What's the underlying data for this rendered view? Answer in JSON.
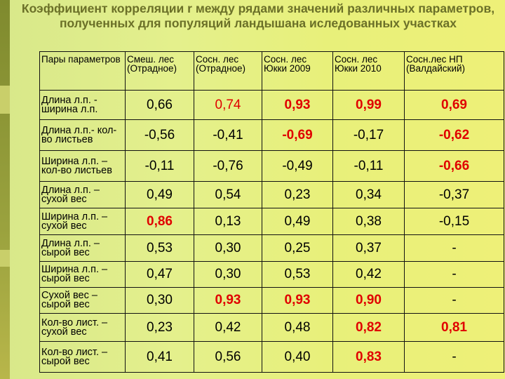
{
  "title": "Коэффициент корреляции r  между рядами значений различных параметров, полученных для  популяций ландышана иследованных участках",
  "columns": [
    "Пары параметров",
    "Смеш. лес (Отрадное)",
    "Сосн. лес (Отрадное)",
    "Сосн. лес Юкки 2009",
    "Сосн. лес Юкки 2010",
    "Сосн.лес НП (Валдайский)"
  ],
  "rows": [
    {
      "pair": "Длина л.п. - ширина л.п.",
      "values": [
        "0,66",
        "0,74",
        "0,93",
        "0,99",
        "0,69"
      ],
      "red": [
        false,
        "plain",
        true,
        true,
        true
      ]
    },
    {
      "pair": "Длина л.п.- кол-во листьев",
      "values": [
        "-0,56",
        "-0,41",
        "-0,69",
        "-0,17",
        "-0,62"
      ],
      "red": [
        false,
        false,
        true,
        false,
        true
      ]
    },
    {
      "pair": "Ширина л.п. – кол-во листьев",
      "values": [
        "-0,11",
        "-0,76",
        "-0,49",
        "-0,11",
        "-0,66"
      ],
      "red": [
        false,
        false,
        false,
        false,
        true
      ]
    },
    {
      "pair": "Длина л.п. – сухой вес",
      "values": [
        "0,49",
        "0,54",
        "0,23",
        "0,34",
        "-0,37"
      ],
      "red": [
        false,
        false,
        false,
        false,
        false
      ]
    },
    {
      "pair": "Ширина л.п. – сухой вес",
      "values": [
        "0,86",
        "0,13",
        "0,49",
        "0,38",
        "-0,15"
      ],
      "red": [
        true,
        false,
        false,
        false,
        false
      ]
    },
    {
      "pair": "Длина л.п. – сырой вес",
      "values": [
        "0,53",
        "0,30",
        "0,25",
        "0,37",
        "-"
      ],
      "red": [
        false,
        false,
        false,
        false,
        false
      ]
    },
    {
      "pair": "Ширина л.п. – сырой вес",
      "values": [
        "0,47",
        "0,30",
        "0,53",
        "0,42",
        "-"
      ],
      "red": [
        false,
        false,
        false,
        false,
        false
      ]
    },
    {
      "pair": "Сухой вес – сырой вес",
      "values": [
        "0,30",
        "0,93",
        "0,93",
        "0,90",
        "-"
      ],
      "red": [
        false,
        true,
        true,
        true,
        false
      ]
    },
    {
      "pair": "Кол-во лист. – сухой вес",
      "values": [
        "0,23",
        "0,42",
        "0,48",
        "0,82",
        "0,81"
      ],
      "red": [
        false,
        false,
        false,
        true,
        true
      ]
    },
    {
      "pair": "Кол-во лист. – сырой вес",
      "values": [
        "0,41",
        "0,56",
        "0,40",
        "0,83",
        "-"
      ],
      "red": [
        false,
        false,
        false,
        true,
        false
      ]
    }
  ],
  "colors": {
    "title": "#6b7028",
    "highlight": "#e00000",
    "bar": "#8a9434"
  }
}
